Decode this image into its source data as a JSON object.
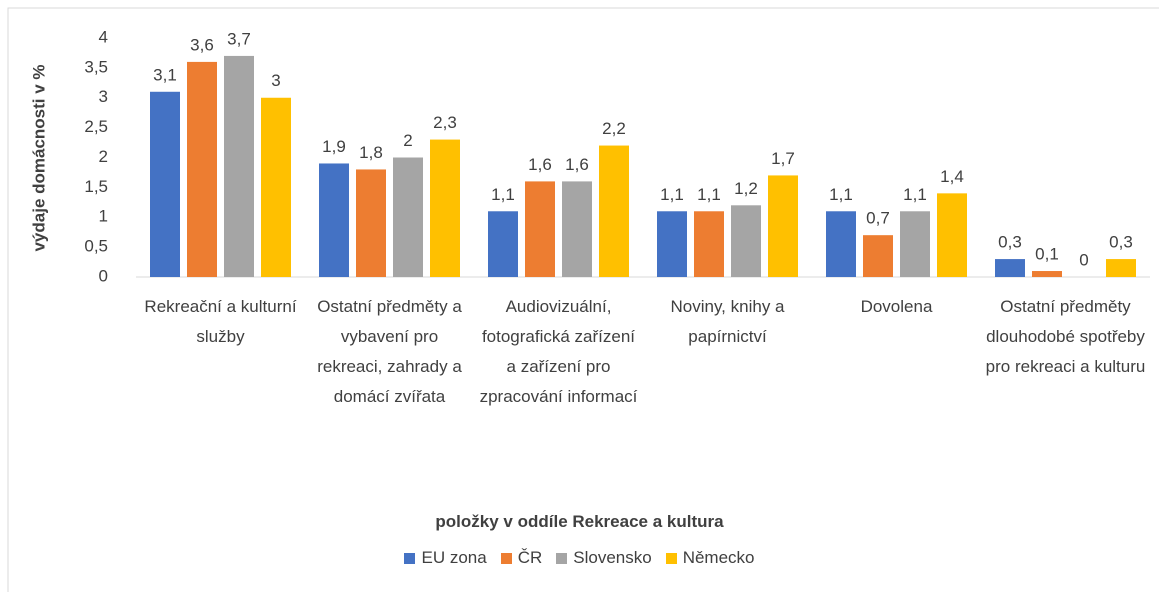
{
  "chart_data": {
    "type": "bar",
    "x_label": "položky v oddíle Rekreace a kultura",
    "y_label": "výdaje domácnosti v %",
    "categories": [
      "Rekreační a kulturní služby",
      "Ostatní předměty a vybavení pro rekreaci, zahrady a domácí zvířata",
      "Audiovizuální, fotografická zařízení a zařízení pro zpracování informací",
      "Noviny, knihy a papírnictví",
      "Dovolena",
      "Ostatní předměty dlouhodobé spotřeby pro rekreaci a kulturu"
    ],
    "series": [
      {
        "name": "EU zona",
        "color": "#4472c4",
        "values": [
          3.1,
          1.9,
          1.1,
          1.1,
          1.1,
          0.3
        ],
        "value_labels": [
          "3,1",
          "1,9",
          "1,1",
          "1,1",
          "1,1",
          "0,3"
        ]
      },
      {
        "name": "ČR",
        "color": "#ed7d31",
        "values": [
          3.6,
          1.8,
          1.6,
          1.1,
          0.7,
          0.1
        ],
        "value_labels": [
          "3,6",
          "1,8",
          "1,6",
          "1,1",
          "0,7",
          "0,1"
        ]
      },
      {
        "name": "Slovensko",
        "color": "#a5a5a5",
        "values": [
          3.7,
          2,
          1.6,
          1.2,
          1.1,
          0
        ],
        "value_labels": [
          "3,7",
          "2",
          "1,6",
          "1,2",
          "1,1",
          "0"
        ]
      },
      {
        "name": "Německo",
        "color": "#ffc000",
        "values": [
          3,
          2.3,
          2.2,
          1.7,
          1.4,
          0.3
        ],
        "value_labels": [
          "3",
          "2,3",
          "2,2",
          "1,7",
          "1,4",
          "0,3"
        ]
      }
    ],
    "ylim": [
      0,
      4
    ],
    "yticks": [
      0,
      {
        "value": 0.5,
        "label": "0,5"
      },
      1,
      {
        "value": 1.5,
        "label": "1,5"
      },
      2,
      {
        "value": 2.5,
        "label": "2,5"
      },
      3,
      {
        "value": 3.5,
        "label": "3,5"
      },
      4
    ],
    "grid": false,
    "legend": "bottom"
  }
}
